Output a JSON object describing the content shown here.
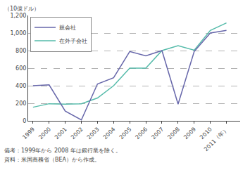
{
  "chart_data": {
    "type": "line",
    "y_label": "（10億ドル）",
    "annotations": [
      "備考：1999年から 2008 年は銀行業を除く。",
      "資料：米国商務省（BEA）から作成。"
    ],
    "x": [
      1999,
      2000,
      2001,
      2002,
      2003,
      2004,
      2005,
      2006,
      2007,
      2008,
      2009,
      2010,
      2011
    ],
    "series": [
      {
        "name": "親会社",
        "color": "#6666aa",
        "values": [
          400,
          410,
          110,
          10,
          420,
          490,
          790,
          740,
          800,
          190,
          790,
          1000,
          1030
        ]
      },
      {
        "name": "在外子会社",
        "color": "#55bbaa",
        "values": [
          155,
          195,
          190,
          195,
          260,
          400,
          600,
          600,
          800,
          855,
          805,
          1030,
          1115
        ]
      }
    ],
    "xlim": [
      1998.7,
      2011.85
    ],
    "xticks": [
      1999,
      2000,
      2001,
      2002,
      2003,
      2004,
      2005,
      2006,
      2007,
      2008,
      2009,
      2010,
      {
        "value": 2011,
        "label": "2011（年）"
      }
    ],
    "ylim": [
      0,
      1200
    ],
    "yticks": [
      0,
      200,
      400,
      600,
      {
        "value": 800,
        "label": "800"
      },
      {
        "value": 1000,
        "label": "1,000"
      },
      {
        "value": 1200,
        "label": "1,200"
      }
    ],
    "grid": true,
    "legend": "upper left"
  }
}
